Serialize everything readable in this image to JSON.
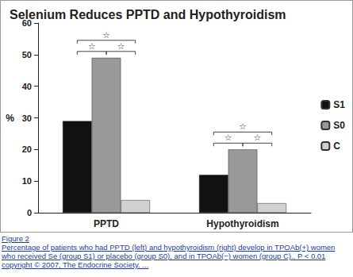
{
  "chart_data": {
    "type": "bar",
    "title": "Selenium Reduces PPTD and Hypothyroidism",
    "categories": [
      "PPTD",
      "Hypothyroidism"
    ],
    "series": [
      {
        "name": "S1",
        "color": "#111111",
        "values": [
          29,
          12
        ]
      },
      {
        "name": "S0",
        "color": "#999999",
        "values": [
          49,
          20
        ]
      },
      {
        "name": "C",
        "color": "#d0d0d0",
        "values": [
          4,
          3
        ]
      }
    ],
    "y_label": "%",
    "ylim": [
      0,
      60
    ],
    "yticks": [
      0,
      10,
      20,
      30,
      40,
      50,
      60
    ],
    "grid": false,
    "legend": "right",
    "annotations": [
      {
        "text": "☆",
        "category": "PPTD",
        "from": "S1",
        "to": "S0"
      },
      {
        "text": "☆",
        "category": "PPTD",
        "from": "S0",
        "to": "C"
      },
      {
        "text": "☆",
        "category": "PPTD",
        "from": "S1",
        "to": "C"
      },
      {
        "text": "☆",
        "category": "Hypothyroidism",
        "from": "S1",
        "to": "S0"
      },
      {
        "text": "☆",
        "category": "Hypothyroidism",
        "from": "S0",
        "to": "C"
      },
      {
        "text": "☆",
        "category": "Hypothyroidism",
        "from": "S1",
        "to": "C"
      }
    ]
  },
  "caption": {
    "figure": "Figure 2",
    "text": "Percentage of patients who had PPTD (left) and hypothyroidism (right) develop in TPOAb(+) women who received Se (group S1) or placebo (group S0), and in TPOAb(−) women (group C)., P < 0.01 copyright © 2007, The Endocrine Society. ..."
  }
}
